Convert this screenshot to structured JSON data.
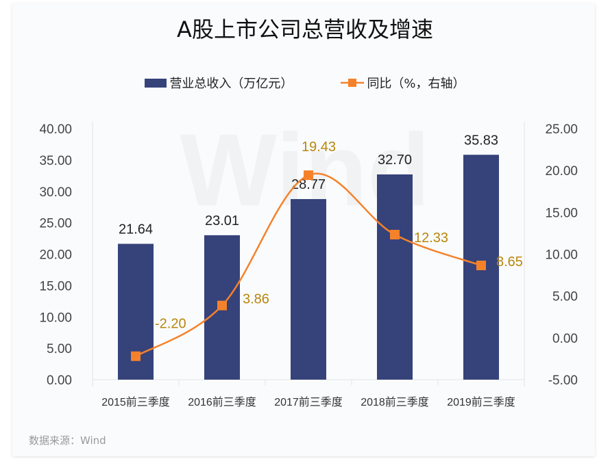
{
  "chart_data": {
    "type": "bar+line",
    "title": "A股上市公司总营收及增速",
    "categories": [
      "2015前三季度",
      "2016前三季度",
      "2017前三季度",
      "2018前三季度",
      "2019前三季度"
    ],
    "series": [
      {
        "name": "营业总收入（万亿元）",
        "type": "bar",
        "axis": "left",
        "values": [
          21.64,
          23.01,
          28.77,
          32.7,
          35.83
        ],
        "color": "#36427a",
        "labels": [
          "21.64",
          "23.01",
          "28.77",
          "32.70",
          "35.83"
        ]
      },
      {
        "name": "同比（%，右轴）",
        "type": "line",
        "axis": "right",
        "values": [
          -2.2,
          3.86,
          19.43,
          12.33,
          8.65
        ],
        "color": "#f5822a",
        "labels": [
          "-2.20",
          "3.86",
          "19.43",
          "12.33",
          "8.65"
        ]
      }
    ],
    "left_axis": {
      "ylim": [
        0,
        40
      ],
      "ticks": [
        "0.00",
        "5.00",
        "10.00",
        "15.00",
        "20.00",
        "25.00",
        "30.00",
        "35.00",
        "40.00"
      ]
    },
    "right_axis": {
      "ylim": [
        -5,
        25
      ],
      "ticks": [
        "-5.00",
        "0.00",
        "5.00",
        "10.00",
        "15.00",
        "20.00",
        "25.00"
      ]
    },
    "legend_placement": "top",
    "grid": false,
    "line_label_color": "#b8860b",
    "watermark": "Wind"
  },
  "source": "数据来源：Wind"
}
